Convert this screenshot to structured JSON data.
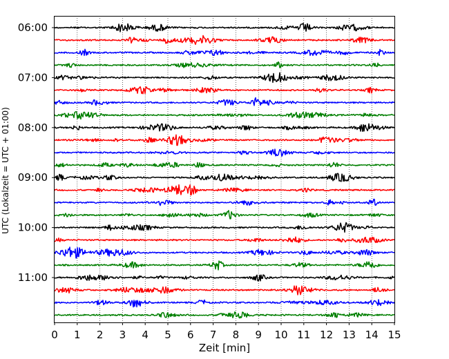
{
  "chart_data": {
    "type": "line",
    "title": "",
    "xlabel": "Zeit  [min]",
    "ylabel": "UTC (Lokalzeit = UTC + 01:00)",
    "xlim": [
      0,
      15
    ],
    "x_ticks": [
      0,
      1,
      2,
      3,
      4,
      5,
      6,
      7,
      8,
      9,
      10,
      11,
      12,
      13,
      14,
      15
    ],
    "x_tick_labels": [
      "0",
      "1",
      "2",
      "3",
      "4",
      "5",
      "6",
      "7",
      "8",
      "9",
      "10",
      "11",
      "12",
      "13",
      "14",
      "15"
    ],
    "y_tick_labels": [
      "06:00",
      "07:00",
      "08:00",
      "09:00",
      "10:00",
      "11:00"
    ],
    "grid": "vertical dotted at each minute",
    "trace_interval_minutes": 15,
    "first_trace_utc": "06:00",
    "trace_count": 24,
    "trace_color_cycle": [
      "#000000",
      "#ff0000",
      "#0000ff",
      "#007f00"
    ]
  }
}
